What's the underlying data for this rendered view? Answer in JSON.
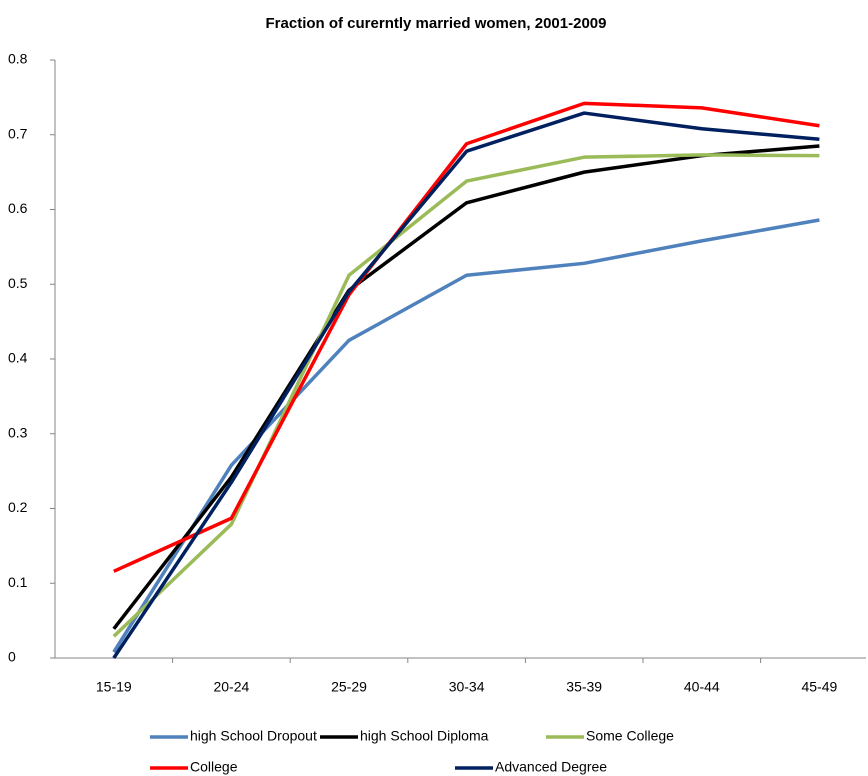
{
  "chart_data": {
    "type": "line",
    "title": "Fraction of curerntly married women, 2001-2009",
    "categories": [
      "15-19",
      "20-24",
      "25-29",
      "30-34",
      "35-39",
      "40-44",
      "45-49"
    ],
    "series": [
      {
        "name": "high School Dropout",
        "color": "#4f81bd",
        "values": [
          0.008,
          0.258,
          0.425,
          0.512,
          0.528,
          0.558,
          0.586
        ]
      },
      {
        "name": "high School Diploma",
        "color": "#000000",
        "values": [
          0.039,
          0.242,
          0.492,
          0.609,
          0.65,
          0.672,
          0.685
        ]
      },
      {
        "name": "Some College",
        "color": "#9bbb59",
        "values": [
          0.029,
          0.179,
          0.512,
          0.638,
          0.67,
          0.673,
          0.672
        ]
      },
      {
        "name": "College",
        "color": "#ff0000",
        "values": [
          0.116,
          0.187,
          0.486,
          0.688,
          0.742,
          0.736,
          0.712
        ]
      },
      {
        "name": "Advanced Degree",
        "color": "#002060",
        "values": [
          0,
          0.235,
          0.49,
          0.678,
          0.729,
          0.708,
          0.694
        ]
      }
    ],
    "ylim": [
      0,
      0.8
    ],
    "yticks": [
      0,
      0.1,
      0.2,
      0.3,
      0.4,
      0.5,
      0.6,
      0.7,
      0.8
    ],
    "grid": false,
    "legend": "bottom"
  }
}
